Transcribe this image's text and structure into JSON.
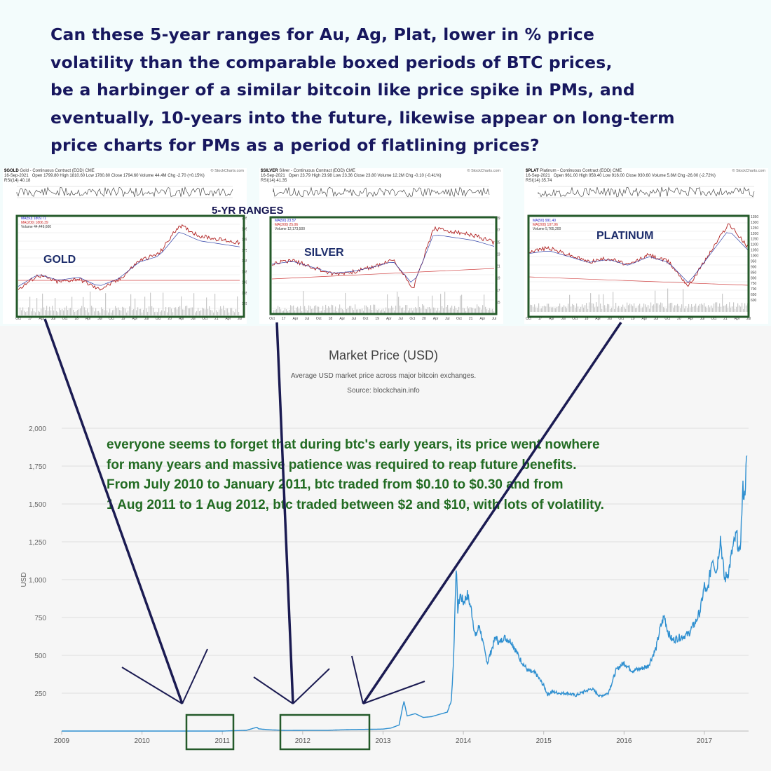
{
  "headline": [
    "Can these 5-year ranges for Au, Ag, Plat, lower in % price",
    "volatility than the comparable boxed periods of BTC prices,",
    "be a harbinger of a similar bitcoin like price spike in PMs, and",
    "eventually, 10-years into the future, likewise appear on long-term",
    "price charts for PMs as a period of flatlining prices?"
  ],
  "ranges_label": "5-YR RANGES",
  "colors": {
    "headline": "#17175e",
    "annotation": "#226b22",
    "btc_line": "#2e8fd0",
    "box": "#245a2a",
    "arrow": "#1b1b52"
  },
  "metal_charts": [
    {
      "id": "gold",
      "symbol": "$GOLD",
      "desc": "Gold - Continuous Contract (EOD) CME",
      "date": "16-Sep-2021",
      "quote": "Open 1799.80  High 1810.60  Low 1780.80  Close 1794.60  Volume 44.4M  Chg -2.70 (+0.15%)",
      "rsi": "RSI(14) 40.18",
      "ma50": "MA(50) 1809.71",
      "ma200": "MA(200) 1806.39",
      "volume": "Volume 44,449,600",
      "name": "GOLD",
      "x_ticks": [
        "Oct",
        "17",
        "Apr",
        "Jul",
        "Oct",
        "18",
        "Apr",
        "Jul",
        "Oct",
        "19",
        "Apr",
        "Jul",
        "Oct",
        "20",
        "Apr",
        "Jul",
        "Oct",
        "21",
        "Apr",
        "Jul"
      ],
      "y_ticks": [
        "2050",
        "1950",
        "1850",
        "1750",
        "1650",
        "1550",
        "1450",
        "1350",
        "1250"
      ]
    },
    {
      "id": "silver",
      "symbol": "$SILVER",
      "desc": "Silver - Continuous Contract (EOD) CME",
      "date": "16-Sep-2021",
      "quote": "Open 23.79  High 23.98  Low 23.36  Close 23.80  Volume 12.2M  Chg -0.10 (-0.41%)",
      "rsi": "RSI(14) 41.35",
      "ma50": "MA(50) 23.57",
      "ma200": "MA(200) 25.06",
      "volume": "Volume 12,173,500",
      "name": "SILVER",
      "x_ticks": [
        "Oct",
        "17",
        "Apr",
        "Jul",
        "Oct",
        "18",
        "Apr",
        "Jul",
        "Oct",
        "19",
        "Apr",
        "Jul",
        "Oct",
        "20",
        "Apr",
        "Jul",
        "Oct",
        "21",
        "Apr",
        "Jul"
      ],
      "y_ticks": [
        "29",
        "27",
        "25",
        "23",
        "21",
        "19",
        "17",
        "15"
      ]
    },
    {
      "id": "platinum",
      "symbol": "$PLAT",
      "desc": "Platinum - Continuous Contract (EOD) CME",
      "date": "16-Sep-2021",
      "quote": "Open 961.00  High 958.40  Low 916.00  Close 930.60  Volume 5.8M  Chg -26.00 (-2.72%)",
      "rsi": "RSI(14) 35.74",
      "ma50": "MA(50) 991.40",
      "ma200": "MA(200) 107.96",
      "volume": "Volume 5,765,200",
      "name": "PLATINUM",
      "x_ticks": [
        "Oct",
        "17",
        "Apr",
        "Jul",
        "Oct",
        "18",
        "Apr",
        "Jul",
        "Oct",
        "19",
        "Apr",
        "Jul",
        "Oct",
        "20",
        "Apr",
        "Jul",
        "Oct",
        "21",
        "Apr",
        "Jul"
      ],
      "y_ticks": [
        "1350",
        "1300",
        "1250",
        "1200",
        "1150",
        "1100",
        "1050",
        "1000",
        "950",
        "900",
        "850",
        "800",
        "750",
        "700",
        "650",
        "600"
      ]
    }
  ],
  "btc": {
    "title": "Market Price (USD)",
    "subtitle": "Average USD market price across major bitcoin exchanges.",
    "source": "Source: blockchain.info"
  },
  "annotation": [
    "everyone seems to forget that during btc's early years, its price went nowhere",
    "for many years and massive patience was required to reap future benefits.",
    "From July 2010 to January 2011, btc traded from $0.10 to $0.30 and from",
    "1 Aug 2011 to 1 Aug 2012, btc traded between $2 and $10, with lots of volatility."
  ],
  "chart_data": {
    "type": "line",
    "title": "Market Price (USD)",
    "ylabel": "USD",
    "x_ticks": [
      "2009",
      "2010",
      "2011",
      "2012",
      "2013",
      "2014",
      "2015",
      "2016",
      "2017"
    ],
    "y_ticks": [
      0,
      250,
      500,
      750,
      1000,
      1250,
      1500,
      1750,
      2000
    ],
    "y_tick_labels": [
      "",
      "250",
      "500",
      "750",
      "1,000",
      "1,250",
      "1,500",
      "1,750",
      "2,000"
    ],
    "xlim": [
      2009.0,
      2017.55
    ],
    "ylim": [
      0,
      2000
    ],
    "series": [
      {
        "x": [
          2009.0,
          2009.5,
          2010.0,
          2010.5,
          2010.9,
          2011.0,
          2011.3,
          2011.43,
          2011.45,
          2011.5,
          2011.6,
          2011.8,
          2012.0,
          2012.3,
          2012.6,
          2012.8,
          2013.0,
          2013.1,
          2013.2,
          2013.26,
          2013.3,
          2013.4,
          2013.5,
          2013.6,
          2013.7,
          2013.8,
          2013.85,
          2013.88,
          2013.91,
          2013.93,
          2013.96,
          2014.0,
          2014.05,
          2014.1,
          2014.15,
          2014.2,
          2014.25,
          2014.3,
          2014.4,
          2014.45,
          2014.5,
          2014.6,
          2014.7,
          2014.8,
          2014.9,
          2015.0,
          2015.05,
          2015.1,
          2015.2,
          2015.3,
          2015.4,
          2015.5,
          2015.6,
          2015.7,
          2015.8,
          2015.85,
          2015.9,
          2015.95,
          2016.0,
          2016.1,
          2016.2,
          2016.3,
          2016.4,
          2016.45,
          2016.5,
          2016.55,
          2016.6,
          2016.7,
          2016.8,
          2016.9,
          2016.95,
          2017.0,
          2017.03,
          2017.06,
          2017.1,
          2017.15,
          2017.2,
          2017.25,
          2017.3,
          2017.35,
          2017.4,
          2017.44,
          2017.48,
          2017.5,
          2017.53
        ],
        "y": [
          0,
          0,
          0,
          0,
          0,
          0,
          5,
          25,
          15,
          12,
          8,
          4,
          5,
          5,
          10,
          11,
          13,
          20,
          40,
          200,
          100,
          115,
          90,
          95,
          110,
          125,
          200,
          500,
          1100,
          800,
          900,
          850,
          900,
          800,
          620,
          700,
          560,
          450,
          620,
          580,
          620,
          590,
          480,
          400,
          380,
          300,
          240,
          260,
          250,
          250,
          235,
          260,
          280,
          230,
          250,
          320,
          400,
          430,
          450,
          400,
          410,
          430,
          550,
          680,
          760,
          650,
          600,
          620,
          640,
          730,
          800,
          960,
          900,
          1000,
          1150,
          1050,
          1280,
          1000,
          1050,
          1200,
          1300,
          1150,
          1600,
          1550,
          1820
        ]
      }
    ]
  }
}
